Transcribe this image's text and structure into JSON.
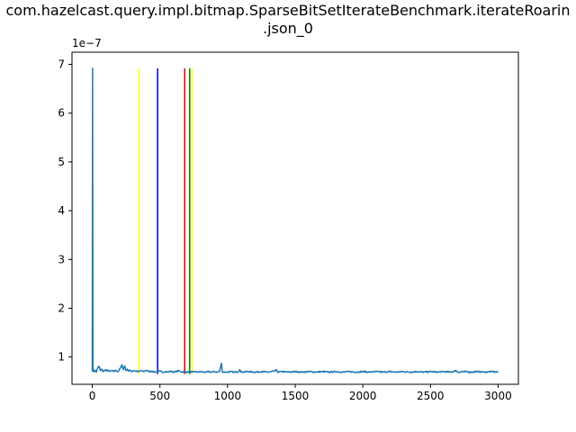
{
  "chart_data": {
    "type": "line",
    "title_line1": "com.hazelcast.query.impl.bitmap.SparseBitSetIterateBenchmark.iterateRoarin",
    "title_line2": ".json_0",
    "xlabel": "",
    "ylabel": "",
    "y_offset_label": "1e−7",
    "xlim": [
      -150,
      3150
    ],
    "ylim": [
      0.44,
      7.25
    ],
    "x_ticks": [
      0,
      500,
      1000,
      1500,
      2000,
      2500,
      3000
    ],
    "x_tick_labels": [
      "0",
      "500",
      "1000",
      "1500",
      "2000",
      "2500",
      "3000"
    ],
    "y_ticks": [
      1,
      2,
      3,
      4,
      5,
      6,
      7
    ],
    "y_tick_labels": [
      "1",
      "2",
      "3",
      "4",
      "5",
      "6",
      "7"
    ],
    "grid": false,
    "series": [
      {
        "color": "#1f77b4",
        "x_start": 0,
        "x_end": 3000,
        "baseline": 0.68,
        "points": [
          [
            0,
            0.7
          ],
          [
            2,
            6.92
          ],
          [
            5,
            0.72
          ],
          [
            10,
            0.7
          ],
          [
            20,
            0.73
          ],
          [
            30,
            0.69
          ],
          [
            40,
            0.78
          ],
          [
            50,
            0.81
          ],
          [
            60,
            0.72
          ],
          [
            70,
            0.75
          ],
          [
            80,
            0.7
          ],
          [
            90,
            0.72
          ],
          [
            100,
            0.74
          ],
          [
            110,
            0.71
          ],
          [
            120,
            0.73
          ],
          [
            130,
            0.7
          ],
          [
            140,
            0.72
          ],
          [
            150,
            0.72
          ],
          [
            160,
            0.7
          ],
          [
            170,
            0.73
          ],
          [
            180,
            0.71
          ],
          [
            190,
            0.7
          ],
          [
            200,
            0.74
          ],
          [
            210,
            0.78
          ],
          [
            220,
            0.84
          ],
          [
            230,
            0.74
          ],
          [
            240,
            0.82
          ],
          [
            250,
            0.72
          ],
          [
            260,
            0.75
          ],
          [
            270,
            0.71
          ],
          [
            280,
            0.73
          ],
          [
            290,
            0.7
          ],
          [
            300,
            0.72
          ],
          [
            320,
            0.71
          ],
          [
            340,
            0.7
          ],
          [
            360,
            0.72
          ],
          [
            380,
            0.7
          ],
          [
            400,
            0.73
          ],
          [
            420,
            0.7
          ],
          [
            440,
            0.71
          ],
          [
            460,
            0.69
          ],
          [
            480,
            0.7
          ],
          [
            500,
            0.71
          ],
          [
            520,
            0.69
          ],
          [
            540,
            0.7
          ],
          [
            560,
            0.69
          ],
          [
            580,
            0.71
          ],
          [
            600,
            0.69
          ],
          [
            620,
            0.7
          ],
          [
            640,
            0.72
          ],
          [
            660,
            0.69
          ],
          [
            680,
            0.7
          ],
          [
            700,
            0.69
          ],
          [
            720,
            0.7
          ],
          [
            740,
            0.69
          ],
          [
            760,
            0.7
          ],
          [
            780,
            0.69
          ],
          [
            800,
            0.7
          ],
          [
            820,
            0.69
          ],
          [
            840,
            0.69
          ],
          [
            860,
            0.7
          ],
          [
            880,
            0.69
          ],
          [
            900,
            0.7
          ],
          [
            920,
            0.69
          ],
          [
            940,
            0.7
          ],
          [
            955,
            0.87
          ],
          [
            960,
            0.7
          ],
          [
            980,
            0.69
          ],
          [
            1000,
            0.69
          ],
          [
            1020,
            0.7
          ],
          [
            1040,
            0.69
          ],
          [
            1060,
            0.69
          ],
          [
            1080,
            0.7
          ],
          [
            1090,
            0.74
          ],
          [
            1100,
            0.69
          ],
          [
            1150,
            0.7
          ],
          [
            1200,
            0.69
          ],
          [
            1250,
            0.7
          ],
          [
            1300,
            0.69
          ],
          [
            1350,
            0.71
          ],
          [
            1360,
            0.74
          ],
          [
            1370,
            0.69
          ],
          [
            1400,
            0.7
          ],
          [
            1450,
            0.69
          ],
          [
            1500,
            0.7
          ],
          [
            1550,
            0.69
          ],
          [
            1600,
            0.7
          ],
          [
            1650,
            0.69
          ],
          [
            1700,
            0.7
          ],
          [
            1750,
            0.69
          ],
          [
            1800,
            0.7
          ],
          [
            1850,
            0.69
          ],
          [
            1900,
            0.7
          ],
          [
            1950,
            0.69
          ],
          [
            2000,
            0.7
          ],
          [
            2050,
            0.69
          ],
          [
            2100,
            0.7
          ],
          [
            2150,
            0.69
          ],
          [
            2200,
            0.7
          ],
          [
            2250,
            0.69
          ],
          [
            2300,
            0.7
          ],
          [
            2350,
            0.69
          ],
          [
            2400,
            0.7
          ],
          [
            2450,
            0.69
          ],
          [
            2500,
            0.7
          ],
          [
            2550,
            0.69
          ],
          [
            2600,
            0.7
          ],
          [
            2650,
            0.69
          ],
          [
            2690,
            0.72
          ],
          [
            2700,
            0.69
          ],
          [
            2750,
            0.7
          ],
          [
            2800,
            0.69
          ],
          [
            2850,
            0.7
          ],
          [
            2900,
            0.69
          ],
          [
            2950,
            0.7
          ],
          [
            3000,
            0.69
          ]
        ]
      }
    ],
    "vertical_lines": [
      {
        "x": 345,
        "y_min": 0.65,
        "y_max": 6.92,
        "color": "#ffff00"
      },
      {
        "x": 483,
        "y_min": 0.65,
        "y_max": 6.92,
        "color": "#0000cc"
      },
      {
        "x": 683,
        "y_min": 0.65,
        "y_max": 6.92,
        "color": "#dd0000"
      },
      {
        "x": 720,
        "y_min": 0.65,
        "y_max": 6.92,
        "color": "#008000"
      },
      {
        "x": 738,
        "y_min": 0.65,
        "y_max": 6.92,
        "color": "#ffff00"
      }
    ]
  }
}
